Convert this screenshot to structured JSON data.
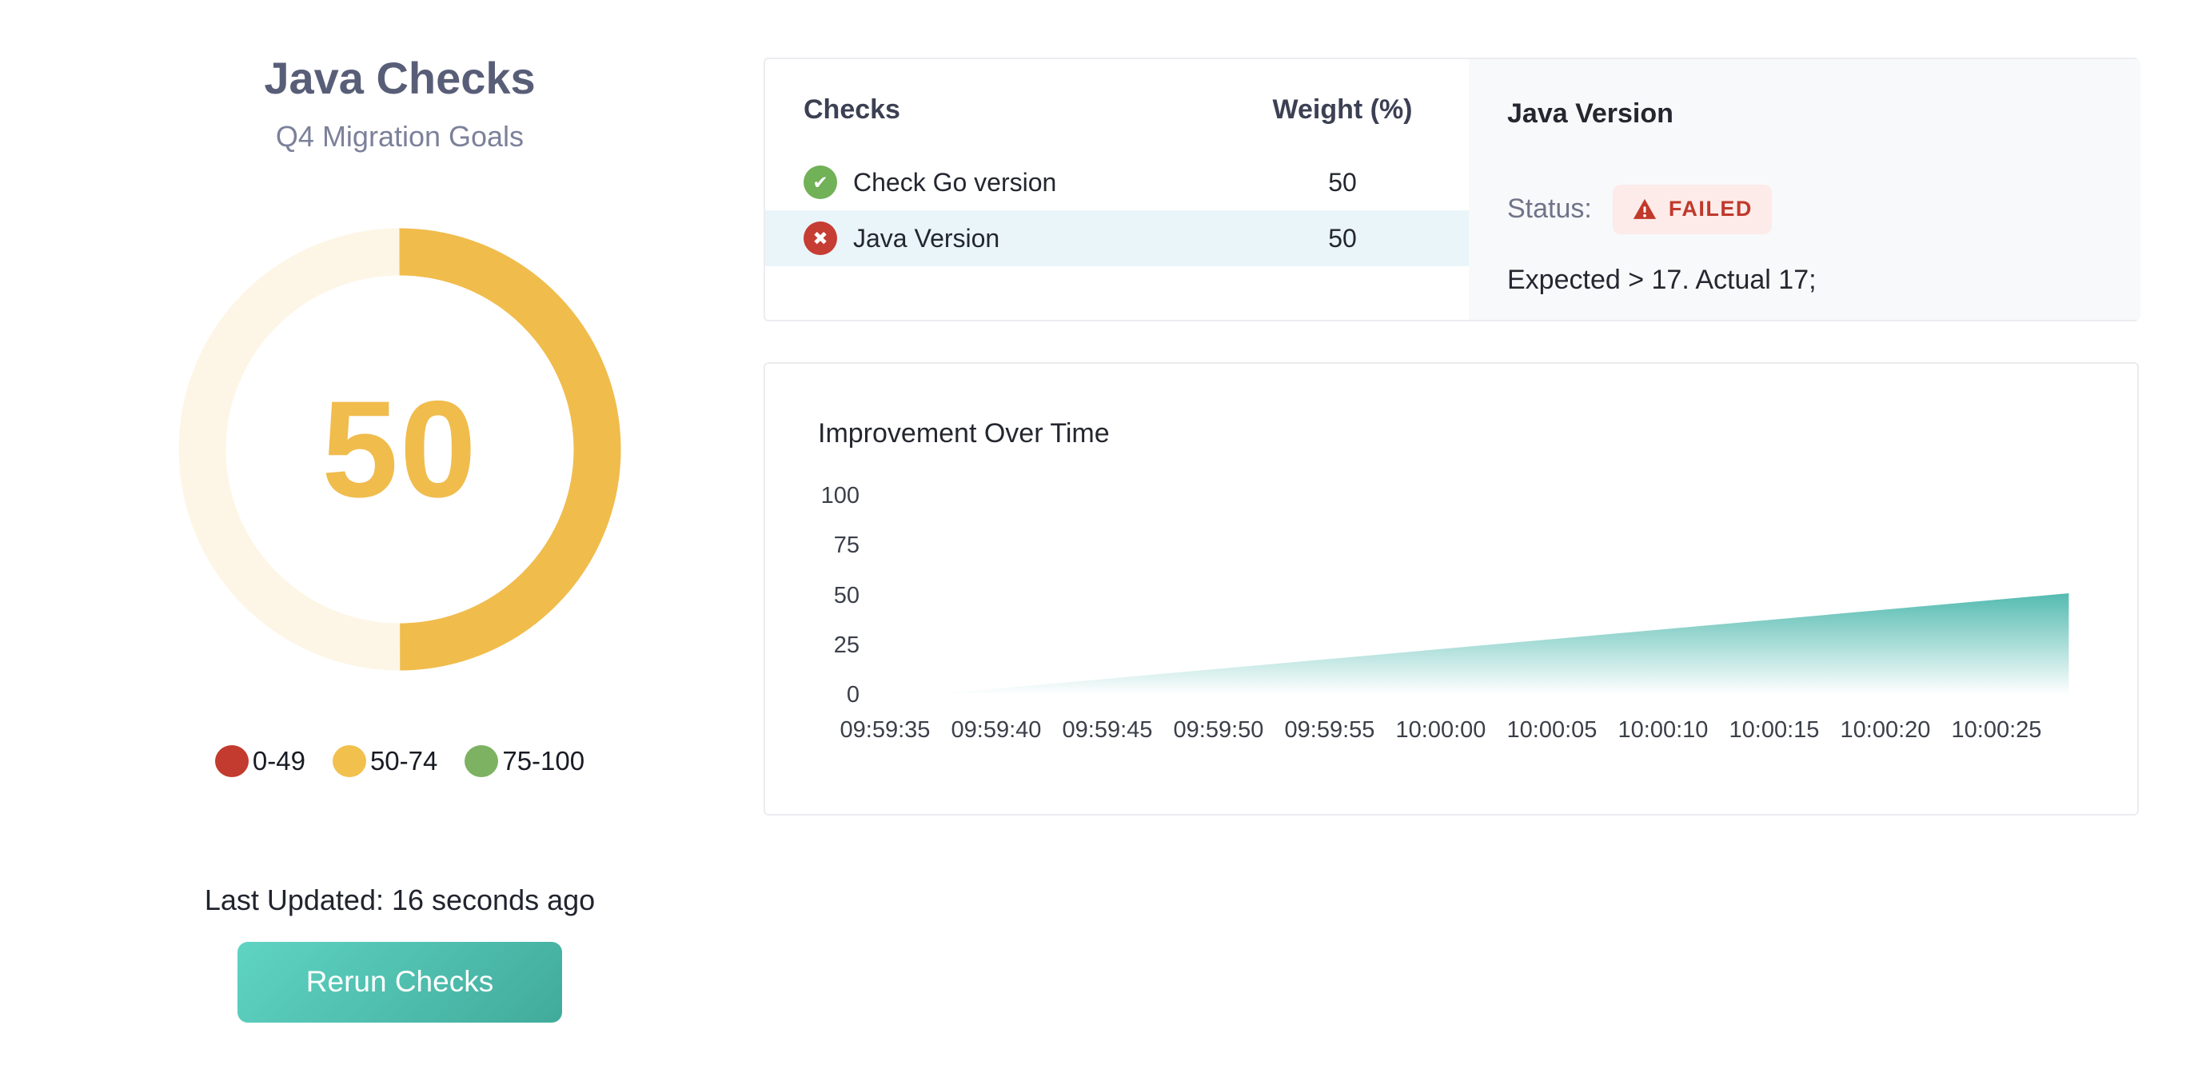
{
  "left_panel": {
    "title": "Java Checks",
    "subtitle": "Q4 Migration Goals",
    "score": "50",
    "score_percent": 50,
    "gauge": {
      "value_color": "#f0bc4c",
      "track_color": "#fdf6e6"
    },
    "legend": [
      {
        "label": "0-49",
        "color": "#c23b2e"
      },
      {
        "label": "50-74",
        "color": "#f2c04d"
      },
      {
        "label": "75-100",
        "color": "#7cb261"
      }
    ],
    "last_updated": "Last Updated: 16 seconds ago",
    "rerun_button": "Rerun Checks",
    "button_gradient": [
      "#5fd4c3",
      "#41ab9b"
    ]
  },
  "checks_card": {
    "columns": [
      "Checks",
      "Weight (%)"
    ],
    "rows": [
      {
        "name": "Check Go version",
        "weight": "50",
        "status": "passed",
        "selected": false
      },
      {
        "name": "Java Version",
        "weight": "50",
        "status": "failed",
        "selected": true
      }
    ],
    "status_icon_colors": {
      "passed": "#71b157",
      "failed": "#c63d33"
    },
    "selected_row_bg": "#e9f5f9",
    "detail": {
      "title": "Java Version",
      "status_label": "Status:",
      "status_badge": "FAILED",
      "badge_bg": "#fcebe9",
      "badge_fg": "#c0392b",
      "message": "Expected > 17. Actual 17;"
    }
  },
  "chart_data": {
    "type": "area",
    "title": "Improvement Over Time",
    "x": [
      "09:59:35",
      "09:59:40",
      "09:59:45",
      "09:59:50",
      "09:59:55",
      "10:00:00",
      "10:00:05",
      "10:00:10",
      "10:00:15",
      "10:00:20",
      "10:00:25"
    ],
    "series": [
      {
        "name": "Improvement",
        "values": [
          0,
          3,
          8,
          13,
          18,
          23,
          28,
          33,
          38,
          43,
          48
        ],
        "start_point": {
          "x_frac": 0.37,
          "value": 0
        },
        "end_point": {
          "x_frac": 10.65,
          "value": 51
        }
      }
    ],
    "ylim": [
      0,
      100
    ],
    "yticks": [
      100,
      75,
      50,
      25,
      0
    ],
    "xlabel": "",
    "ylabel": "",
    "grid": false,
    "legend_position": "none",
    "area_color": "#4ab7ac"
  }
}
